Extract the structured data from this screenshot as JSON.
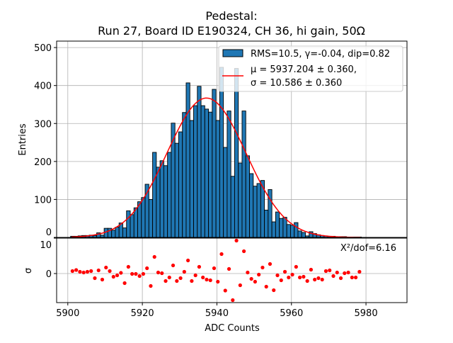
{
  "chart_data": [
    {
      "type": "bar",
      "title_line1": "Pedestal:",
      "title_line2": "Run 27, Board ID E190324, CH 36, hi gain, 50Ω",
      "xlabel": "ADC Counts",
      "ylabel": "Entries",
      "xlim": [
        5897,
        5991
      ],
      "ylim": [
        0,
        517
      ],
      "xticks": [
        5900,
        5920,
        5940,
        5960,
        5980
      ],
      "yticks": [
        0,
        100,
        200,
        300,
        400,
        500
      ],
      "grid": true,
      "bin_start": 5900.75,
      "bin_width": 1,
      "values": [
        3,
        3,
        4,
        5,
        5,
        6,
        5,
        12,
        6,
        24,
        24,
        19,
        27,
        38,
        25,
        70,
        60,
        78,
        94,
        105,
        140,
        100,
        224,
        185,
        202,
        189,
        224,
        301,
        248,
        278,
        329,
        407,
        308,
        347,
        398,
        347,
        338,
        330,
        390,
        308,
        448,
        237,
        333,
        161,
        445,
        196,
        333,
        215,
        168,
        135,
        142,
        150,
        72,
        126,
        41,
        67,
        50,
        53,
        34,
        32,
        39,
        17,
        13,
        4,
        15,
        10,
        7,
        5,
        4,
        3,
        3,
        2,
        2,
        2,
        1,
        1,
        1,
        1
      ],
      "bar_color": "#1f77b4",
      "fit": {
        "type": "gaussian",
        "mu": 5937.204,
        "sigma": 10.586,
        "amplitude": 367,
        "range": [
          5901,
          5978.5
        ],
        "color": "#ff0000"
      },
      "legend": {
        "location": "top-right",
        "entries": [
          {
            "label": "RMS=10.5, γ=-0.04, dip=0.82",
            "kind": "patch"
          },
          {
            "label_line1": "μ = 5937.204 ± 0.360,",
            "label_line2": "σ = 10.586 ± 0.360",
            "kind": "line"
          }
        ]
      }
    },
    {
      "type": "scatter",
      "xlabel": "ADC Counts",
      "ylabel": "σ",
      "xlim": [
        5897,
        5991
      ],
      "ylim": [
        -8.2,
        10
      ],
      "yticks": [
        0,
        10
      ],
      "xticks": [
        5900,
        5920,
        5940,
        5960,
        5980
      ],
      "grid": true,
      "annotation": "X²/dof=6.16",
      "x_start": 5901.25,
      "x_step": 1,
      "values": [
        0.7,
        1.0,
        0.5,
        0.3,
        0.5,
        0.7,
        -1.3,
        0.9,
        -1.7,
        1.7,
        0.7,
        -0.9,
        -0.5,
        0.2,
        -2.7,
        1.9,
        -0.1,
        -0.1,
        -0.7,
        -0.1,
        1.5,
        -3.5,
        4.7,
        0.3,
        0.1,
        -2.1,
        -1.1,
        2.3,
        -2.1,
        -1.3,
        0.5,
        3.7,
        -2.1,
        -0.5,
        1.9,
        -1.1,
        -1.7,
        -1.9,
        1.5,
        -2.3,
        5.5,
        -4.8,
        1.3,
        -7.5,
        9.3,
        -3.3,
        6.3,
        0.3,
        -1.5,
        -2.3,
        -0.3,
        1.7,
        -3.7,
        2.7,
        -4.7,
        -0.5,
        -1.9,
        0.5,
        -1.1,
        -0.3,
        1.9,
        -1.1,
        -0.9,
        -2.1,
        1.1,
        -1.7,
        -1.3,
        -1.7,
        0.7,
        0.9,
        -0.7,
        0.3,
        -1.3,
        0.1,
        0.3,
        -1.1,
        -1.1,
        0.5
      ],
      "point_color": "#ff0000"
    }
  ]
}
